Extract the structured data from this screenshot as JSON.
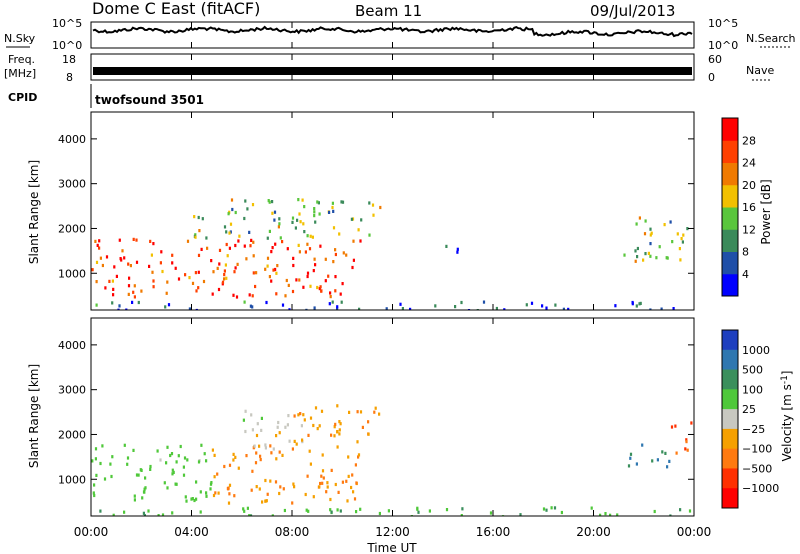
{
  "header": {
    "station": "Dome C East (fitACF)",
    "beam": "Beam 11",
    "date": "09/Jul/2013"
  },
  "noise_panel": {
    "left_label": "N.Sky",
    "right_label": "N.Search",
    "left_ticks": [
      "10^5",
      "10^0"
    ],
    "right_ticks": [
      "10^5",
      "10^0"
    ]
  },
  "freq_panel": {
    "left_label_1": "Freq.",
    "left_label_2": "[MHz]",
    "right_label": "Nave",
    "left_ticks": [
      "18",
      "8"
    ],
    "right_ticks": [
      "60",
      "0"
    ]
  },
  "cpid_panel": {
    "label": "CPID",
    "program": "twofsound 3501"
  },
  "axes": {
    "x_label": "Time UT",
    "x_ticks": [
      "00:00",
      "04:00",
      "08:00",
      "12:00",
      "16:00",
      "20:00",
      "00:00"
    ],
    "y_label": "Slant Range [km]",
    "y_ticks": [
      "1000",
      "2000",
      "3000",
      "4000"
    ]
  },
  "power_scale": {
    "label": "Power [dB]",
    "ticks": [
      "4",
      "8",
      "12",
      "16",
      "20",
      "24",
      "28"
    ],
    "colors": [
      "#0000ff",
      "#1f4fa8",
      "#3a8a5a",
      "#59c63c",
      "#f2c000",
      "#f07a00",
      "#ff4000",
      "#ff0000"
    ]
  },
  "velocity_scale": {
    "label": "Velocity [m s",
    "label_sup": "-1",
    "label_end": "]",
    "ticks": [
      "1000",
      "500",
      "100",
      "25",
      "−25",
      "−100",
      "−500",
      "−1000"
    ],
    "colors": [
      "#1e3fbf",
      "#2f77b0",
      "#3a8f5c",
      "#4fc83a",
      "#c8c8c0",
      "#f5a000",
      "#ff7a10",
      "#ff3000",
      "#ff0000"
    ]
  },
  "chart_data": [
    {
      "type": "heatmap",
      "title": "Power",
      "xlabel": "Time UT",
      "ylabel": "Slant Range [km]",
      "xlim": [
        "00:00",
        "24:00"
      ],
      "ylim": [
        180,
        4600
      ],
      "colorbar": "Power [dB]",
      "regions": [
        {
          "t0": 0.0,
          "t1": 10.8,
          "r0": 500,
          "r1": 1800,
          "value": 26
        },
        {
          "t0": 4.0,
          "t1": 11.5,
          "r0": 1800,
          "r1": 2700,
          "value": 14
        },
        {
          "t0": 13.8,
          "t1": 14.6,
          "r0": 1400,
          "r1": 1700,
          "value": 8
        },
        {
          "t0": 21.0,
          "t1": 23.8,
          "r0": 1300,
          "r1": 2300,
          "value": 14
        },
        {
          "t0": 0.0,
          "t1": 24.0,
          "r0": 200,
          "r1": 400,
          "value": 6
        }
      ]
    },
    {
      "type": "heatmap",
      "title": "Velocity",
      "xlabel": "Time UT",
      "ylabel": "Slant Range [km]",
      "xlim": [
        "00:00",
        "24:00"
      ],
      "ylim": [
        180,
        4600
      ],
      "colorbar": "Velocity [m s-1]",
      "regions": [
        {
          "t0": 0.0,
          "t1": 4.8,
          "r0": 500,
          "r1": 1800,
          "value": 50
        },
        {
          "t0": 4.8,
          "t1": 10.8,
          "r0": 500,
          "r1": 1800,
          "value": -100
        },
        {
          "t0": 6.0,
          "t1": 8.5,
          "r0": 1700,
          "r1": 2600,
          "value": 0
        },
        {
          "t0": 8.0,
          "t1": 11.5,
          "r0": 1800,
          "r1": 2700,
          "value": -100
        },
        {
          "t0": 21.0,
          "t1": 23.0,
          "r0": 1300,
          "r1": 1800,
          "value": 500
        },
        {
          "t0": 23.0,
          "t1": 24.0,
          "r0": 1600,
          "r1": 2300,
          "value": -500
        },
        {
          "t0": 0.0,
          "t1": 24.0,
          "r0": 200,
          "r1": 400,
          "value": 80
        }
      ]
    }
  ]
}
